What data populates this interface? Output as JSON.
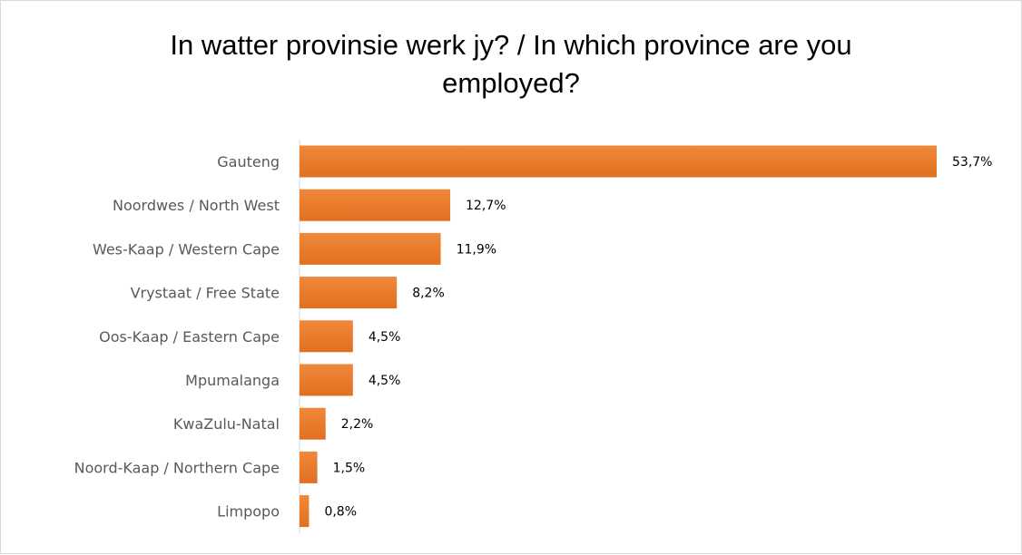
{
  "chart_data": {
    "type": "bar",
    "orientation": "horizontal",
    "title": "In watter provinsie werk jy? / In which province are you employed?",
    "categories": [
      "Gauteng",
      "Noordwes / North West",
      "Wes-Kaap / Western Cape",
      "Vrystaat / Free State",
      "Oos-Kaap / Eastern Cape",
      "Mpumalanga",
      "KwaZulu-Natal",
      "Noord-Kaap / Northern Cape",
      "Limpopo"
    ],
    "values": [
      53.7,
      12.7,
      11.9,
      8.2,
      4.5,
      4.5,
      2.2,
      1.5,
      0.8
    ],
    "value_labels": [
      "53,7%",
      "12,7%",
      "11,9%",
      "8,2%",
      "4,5%",
      "4,5%",
      "2,2%",
      "1,5%",
      "0,8%"
    ],
    "unit": "%",
    "xlim": [
      0,
      53.7
    ],
    "bar_color": "#ed7d31",
    "grid": false,
    "legend": "none"
  }
}
